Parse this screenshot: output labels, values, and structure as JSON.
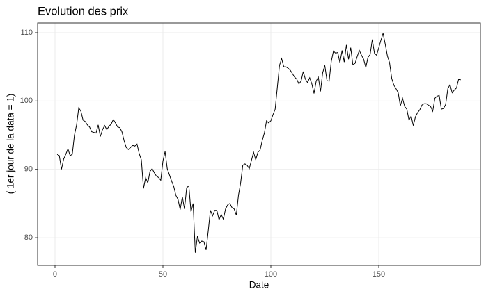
{
  "chart_data": {
    "type": "line",
    "title": "Evolution des prix",
    "x_label": "Date",
    "y_label": "( 1er jour de la data = 1)",
    "x": [
      1,
      2,
      3,
      4,
      5,
      6,
      7,
      8,
      9,
      10,
      11,
      12,
      13,
      14,
      15,
      16,
      17,
      18,
      19,
      20,
      21,
      22,
      23,
      24,
      25,
      26,
      27,
      28,
      29,
      30,
      31,
      32,
      33,
      34,
      35,
      36,
      37,
      38,
      39,
      40,
      41,
      42,
      43,
      44,
      45,
      46,
      47,
      48,
      49,
      50,
      51,
      52,
      53,
      54,
      55,
      56,
      57,
      58,
      59,
      60,
      61,
      62,
      63,
      64,
      65,
      66,
      67,
      68,
      69,
      70,
      71,
      72,
      73,
      74,
      75,
      76,
      77,
      78,
      79,
      80,
      81,
      82,
      83,
      84,
      85,
      86,
      87,
      88,
      89,
      90,
      91,
      92,
      93,
      94,
      95,
      96,
      97,
      98,
      99,
      100,
      101,
      102,
      103,
      104,
      105,
      106,
      107,
      108,
      109,
      110,
      111,
      112,
      113,
      114,
      115,
      116,
      117,
      118,
      119,
      120,
      121,
      122,
      123,
      124,
      125,
      126,
      127,
      128,
      129,
      130,
      131,
      132,
      133,
      134,
      135,
      136,
      137,
      138,
      139,
      140,
      141,
      142,
      143,
      144,
      145,
      146,
      147,
      148,
      149,
      150,
      151,
      152,
      153,
      154,
      155,
      156,
      157,
      158,
      159,
      160,
      161,
      162,
      163,
      164,
      165,
      166,
      167,
      168,
      169,
      170,
      171,
      172,
      173,
      174,
      175,
      176,
      177,
      178,
      179,
      180,
      181,
      182,
      183,
      184,
      185,
      186,
      187,
      188
    ],
    "series": [
      {
        "color": "#000000",
        "values": [
          92.2,
          92,
          90,
          91.5,
          92.2,
          93,
          92,
          92.2,
          95,
          96.5,
          99,
          98.5,
          97.2,
          97,
          96.5,
          96.2,
          95.5,
          95.4,
          95.3,
          96.5,
          94.8,
          95.8,
          96.4,
          95.8,
          96.3,
          96.6,
          97.3,
          96.8,
          96.2,
          96.1,
          95.5,
          94.2,
          93.2,
          92.9,
          93.2,
          93.5,
          93.4,
          93.7,
          92.3,
          91.4,
          87.2,
          88.8,
          88,
          89.7,
          90.1,
          89.5,
          89,
          88.8,
          88.4,
          91.2,
          92.6,
          90.1,
          89.2,
          88.3,
          87.5,
          86.2,
          85.6,
          84.1,
          86,
          84.2,
          87.3,
          87.6,
          83.8,
          85,
          77.8,
          80.2,
          79.2,
          79.5,
          79.4,
          78.2,
          81,
          84,
          83.2,
          84,
          84,
          82.6,
          83.4,
          82.7,
          84.2,
          84.8,
          85,
          84.4,
          84.2,
          83.3,
          86.2,
          88,
          90.6,
          90.8,
          90.6,
          90.1,
          91.3,
          92.5,
          91.4,
          92.5,
          92.8,
          94.2,
          95.3,
          97.1,
          96.8,
          97.1,
          98,
          98.8,
          102,
          105.2,
          106.2,
          105,
          105,
          104.8,
          104.5,
          104,
          103.5,
          103.2,
          102.5,
          102.9,
          104.3,
          103.2,
          102.7,
          103.4,
          102.5,
          101.1,
          102.9,
          103.5,
          101.4,
          104.1,
          105.2,
          103,
          102.9,
          105.8,
          107.3,
          107,
          107.1,
          105.6,
          107.4,
          105.7,
          108.2,
          106.1,
          107.8,
          105.3,
          105.5,
          106.5,
          107.4,
          106.7,
          106.1,
          104.9,
          106.4,
          106.8,
          109,
          107,
          106.7,
          107.8,
          108.9,
          109.9,
          108.3,
          106.6,
          105.6,
          103.3,
          102.3,
          101.8,
          101.2,
          99.3,
          100.4,
          99.2,
          98.8,
          97.2,
          97.8,
          96.4,
          97.7,
          98.3,
          98.7,
          99.4,
          99.6,
          99.6,
          99.4,
          99.2,
          98.5,
          100.4,
          100.7,
          100.8,
          98.8,
          98.9,
          99.5,
          101.8,
          102.4,
          101.2,
          101.6,
          101.9,
          103.2,
          103.1
        ]
      }
    ],
    "xlim": [
      -8.06,
      197.1
    ],
    "xticks": [
      0,
      50,
      100,
      150
    ],
    "ylim": [
      75.94,
      111.42
    ],
    "yticks": [
      80,
      90,
      100,
      110
    ],
    "grid": true
  }
}
